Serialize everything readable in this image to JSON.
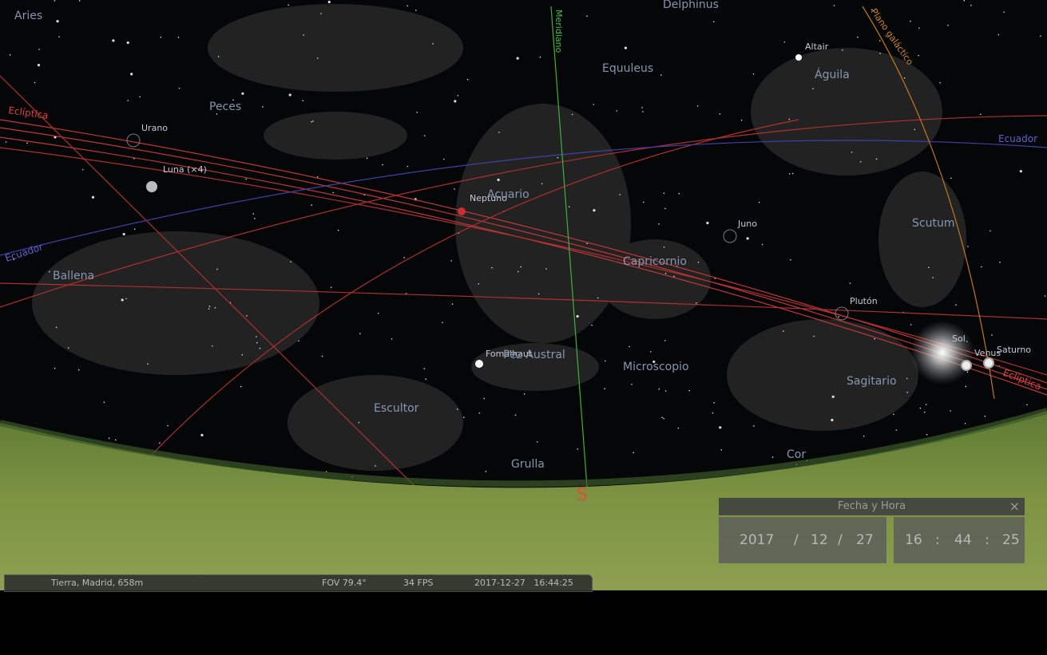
{
  "sky": {
    "labels": [
      "Aries",
      "Meridiano",
      "Delphinus",
      "Plano galáctico",
      "Equuleus",
      "Altair",
      "Águila",
      "Eclíptica",
      "Peces",
      "Urano",
      "Luna (×4)",
      "Neptuno",
      "Acuario",
      "Ecuador",
      "Ecuador",
      "Juno",
      "Scutum",
      "Capricornio",
      "Ballena",
      "Plutón",
      "Sol",
      "Venus",
      "Saturno",
      "Eclíptica",
      "Fomalhaut",
      "Pez Austral",
      "Microscopio",
      "Sagitario",
      "Escultor",
      "Grulla",
      "Cor"
    ]
  },
  "horizon": {
    "cardinal": "S"
  },
  "date_time_dialog": {
    "title": "Fecha y Hora",
    "close": "×",
    "year": "2017",
    "sep1": "/",
    "month": "12",
    "sep2": "/",
    "day": "27",
    "hour": "16",
    "sep3": ":",
    "minute": "44",
    "sep4": ":",
    "second": "25"
  },
  "status_bar": {
    "location": "Tierra, Madrid, 658m",
    "fov": "FOV 79.4°",
    "fps": "34 FPS",
    "datetime": "2017-12-27   16:44:25"
  }
}
